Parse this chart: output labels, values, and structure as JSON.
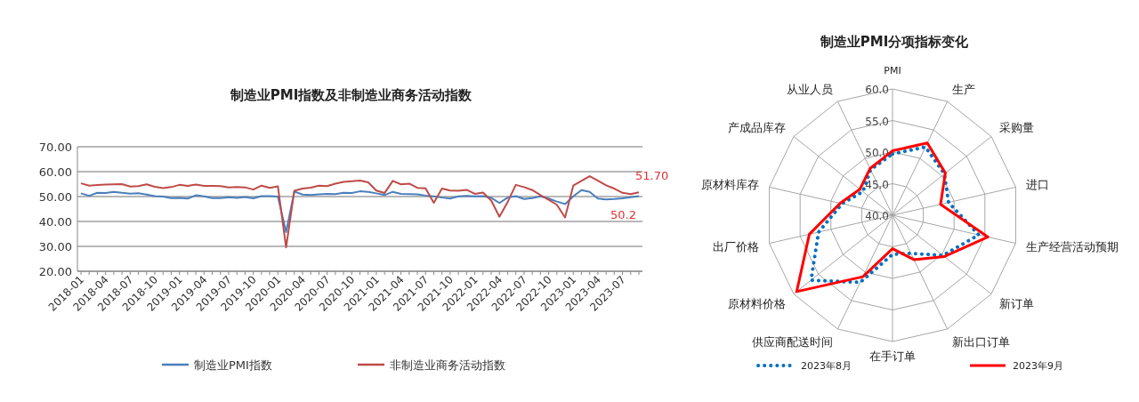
{
  "chart_data": [
    {
      "type": "line",
      "title": "制造业PMI指数及非制造业商务活动指数",
      "categories": [
        "2018-01",
        null,
        null,
        "2018-04",
        null,
        null,
        "2018-07",
        null,
        null,
        "2018-10",
        null,
        null,
        "2019-01",
        null,
        null,
        "2019-04",
        null,
        null,
        "2019-07",
        null,
        null,
        "2019-10",
        null,
        null,
        "2020-01",
        null,
        null,
        "2020-04",
        null,
        null,
        "2020-07",
        null,
        null,
        "2020-10",
        null,
        null,
        "2021-01",
        null,
        null,
        "2021-04",
        null,
        null,
        "2021-07",
        null,
        null,
        "2021-10",
        null,
        null,
        "2022-01",
        null,
        null,
        "2022-04",
        null,
        null,
        "2022-07",
        null,
        null,
        "2022-10",
        null,
        null,
        "2023-01",
        null,
        null,
        "2023-04",
        null,
        null,
        "2023-07",
        null,
        null
      ],
      "series": [
        {
          "name": "制造业PMI指数",
          "color": "#4a7ebb",
          "values": [
            51.3,
            50.3,
            51.5,
            51.4,
            51.9,
            51.5,
            51.2,
            51.3,
            50.8,
            50.2,
            50.0,
            49.4,
            49.5,
            49.2,
            50.5,
            50.1,
            49.4,
            49.4,
            49.7,
            49.5,
            49.8,
            49.3,
            50.2,
            50.2,
            50.0,
            35.7,
            52.0,
            50.8,
            50.6,
            50.9,
            51.1,
            51.0,
            51.5,
            51.4,
            52.1,
            51.9,
            51.3,
            50.6,
            51.9,
            51.1,
            51.0,
            50.9,
            50.4,
            50.1,
            49.6,
            49.2,
            50.1,
            50.3,
            50.1,
            50.2,
            49.5,
            47.4,
            49.6,
            50.2,
            49.0,
            49.4,
            50.1,
            49.2,
            48.0,
            47.0,
            50.1,
            52.6,
            51.9,
            49.2,
            48.8,
            49.0,
            49.3,
            49.7,
            50.2
          ]
        },
        {
          "name": "非制造业商务活动指数",
          "color": "#be4b48",
          "values": [
            55.3,
            54.4,
            54.6,
            54.8,
            54.9,
            55.0,
            54.0,
            54.2,
            54.9,
            53.9,
            53.4,
            53.8,
            54.7,
            54.3,
            54.8,
            54.3,
            54.3,
            54.2,
            53.7,
            53.8,
            53.7,
            52.8,
            54.4,
            53.5,
            54.1,
            29.6,
            52.3,
            53.2,
            53.6,
            54.4,
            54.2,
            55.2,
            55.9,
            56.2,
            56.4,
            55.7,
            52.4,
            51.4,
            56.3,
            54.9,
            55.2,
            53.5,
            53.3,
            47.5,
            53.2,
            52.4,
            52.3,
            52.7,
            51.1,
            51.6,
            48.4,
            41.9,
            47.8,
            54.7,
            53.8,
            52.6,
            50.6,
            48.7,
            46.7,
            41.6,
            54.4,
            56.3,
            58.2,
            56.4,
            54.5,
            53.2,
            51.5,
            51.0,
            51.7
          ]
        }
      ],
      "ylim": [
        20,
        70
      ],
      "yticks": [
        {
          "value": 20,
          "label": "20.00"
        },
        {
          "value": 30,
          "label": "30.00"
        },
        {
          "value": 40,
          "label": "40.00"
        },
        {
          "value": 50,
          "label": "50.00"
        },
        {
          "value": 60,
          "label": "60.00"
        },
        {
          "value": 70,
          "label": "70.00"
        }
      ],
      "grid": "y",
      "legend": "bottom",
      "annotations": [
        "51.70",
        "50.2"
      ]
    },
    {
      "type": "radar",
      "title": "制造业PMI分项指标变化",
      "categories": [
        "PMI",
        "生产",
        "采购量",
        "进口",
        "生产经营活动预期",
        "新订单",
        "新出口订单",
        "在手订单",
        "供应商配送时间",
        "原材料价格",
        "出厂价格",
        "原材料库存",
        "产成品库存",
        "从业人员"
      ],
      "series": [
        {
          "name": "2023年8月",
          "color": "#0070c0",
          "line_style": "dotted",
          "values": [
            49.7,
            52.0,
            50.5,
            49.1,
            54.0,
            50.2,
            46.7,
            46.2,
            51.8,
            56.5,
            52.0,
            48.2,
            46.0,
            48.0
          ]
        },
        {
          "name": "2023年9月",
          "color": "#ff0000",
          "line_style": "solid",
          "values": [
            50.2,
            52.7,
            50.7,
            47.8,
            55.5,
            50.5,
            47.8,
            45.3,
            50.8,
            59.4,
            53.5,
            48.5,
            46.6,
            48.2
          ]
        }
      ],
      "ylim": [
        40,
        60
      ],
      "yticks": [
        {
          "value": 40,
          "label": "40.0"
        },
        {
          "value": 45,
          "label": "45.0"
        },
        {
          "value": 50,
          "label": "50.0"
        },
        {
          "value": 55,
          "label": "55.0"
        },
        {
          "value": 60,
          "label": "60.0"
        }
      ],
      "grid": true,
      "legend": "bottom"
    }
  ]
}
